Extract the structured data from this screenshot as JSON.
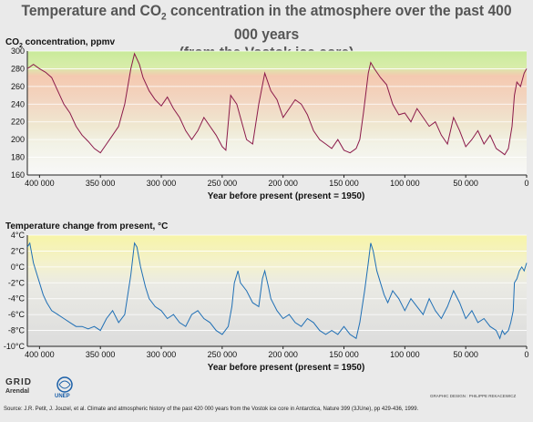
{
  "title_line1_pre": "Temperature and CO",
  "title_sub": "2",
  "title_line1_post": " concentration in the atmosphere over the past 400 000 years",
  "title_line2": "(from the Vostok ice core)",
  "chart_data": [
    {
      "type": "line",
      "ylabel_pre": "CO",
      "ylabel_sub": "2",
      "ylabel_post": " concentration, ppmv",
      "xlabel": "Year before present (present = 1950)",
      "xlim": [
        410000,
        0
      ],
      "ylim": [
        160,
        300
      ],
      "yticks": [
        "300",
        "280",
        "260",
        "240",
        "220",
        "200",
        "180",
        "160"
      ],
      "ytick_values": [
        300,
        280,
        260,
        240,
        220,
        200,
        180,
        160
      ],
      "xticks": [
        "400 000",
        "350 000",
        "300 000",
        "250 000",
        "200 000",
        "150 000",
        "100 000",
        "50 000",
        "0"
      ],
      "xtick_values": [
        400000,
        350000,
        300000,
        250000,
        200000,
        150000,
        100000,
        50000,
        0
      ],
      "line_color": "#8b1a4a",
      "x": [
        410000,
        405000,
        400000,
        395000,
        390000,
        385000,
        380000,
        375000,
        370000,
        365000,
        360000,
        355000,
        350000,
        345000,
        340000,
        335000,
        330000,
        325000,
        322000,
        318000,
        315000,
        310000,
        305000,
        300000,
        295000,
        290000,
        285000,
        280000,
        275000,
        270000,
        265000,
        260000,
        255000,
        250000,
        247000,
        243000,
        238000,
        235000,
        230000,
        225000,
        220000,
        215000,
        210000,
        205000,
        200000,
        195000,
        190000,
        185000,
        180000,
        175000,
        170000,
        165000,
        160000,
        155000,
        150000,
        145000,
        140000,
        137000,
        134000,
        130000,
        128000,
        125000,
        120000,
        115000,
        110000,
        105000,
        100000,
        95000,
        90000,
        85000,
        80000,
        75000,
        70000,
        65000,
        60000,
        55000,
        50000,
        45000,
        40000,
        35000,
        30000,
        25000,
        20000,
        18000,
        15000,
        12000,
        10000,
        8000,
        5000,
        2000,
        0
      ],
      "y": [
        280,
        285,
        280,
        276,
        270,
        255,
        240,
        230,
        215,
        205,
        198,
        190,
        185,
        195,
        205,
        215,
        240,
        280,
        297,
        285,
        270,
        255,
        245,
        238,
        248,
        235,
        225,
        210,
        200,
        210,
        225,
        215,
        205,
        192,
        188,
        250,
        240,
        225,
        200,
        195,
        240,
        275,
        255,
        245,
        225,
        235,
        245,
        240,
        228,
        210,
        200,
        195,
        190,
        200,
        188,
        185,
        190,
        200,
        230,
        275,
        287,
        280,
        270,
        262,
        240,
        228,
        230,
        220,
        235,
        225,
        215,
        220,
        205,
        195,
        225,
        210,
        192,
        200,
        210,
        195,
        205,
        190,
        185,
        183,
        190,
        215,
        250,
        265,
        260,
        275,
        280
      ]
    },
    {
      "type": "line",
      "ylabel": "Temperature change from present, °C",
      "xlabel": "Year before present (present = 1950)",
      "xlim": [
        410000,
        0
      ],
      "ylim": [
        -10,
        4
      ],
      "yticks": [
        "4°C",
        "2°C",
        "0°C",
        "-2°C",
        "-4°C",
        "-6°C",
        "-8°C",
        "-10°C"
      ],
      "ytick_values": [
        4,
        2,
        0,
        -2,
        -4,
        -6,
        -8,
        -10
      ],
      "xticks": [
        "400 000",
        "350 000",
        "300 000",
        "250 000",
        "200 000",
        "150 000",
        "100 000",
        "50 000",
        "0"
      ],
      "xtick_values": [
        400000,
        350000,
        300000,
        250000,
        200000,
        150000,
        100000,
        50000,
        0
      ],
      "line_color": "#1f6fb5",
      "x": [
        410000,
        408000,
        405000,
        402000,
        400000,
        397000,
        394000,
        390000,
        385000,
        380000,
        375000,
        370000,
        365000,
        360000,
        355000,
        350000,
        345000,
        340000,
        335000,
        330000,
        328000,
        325000,
        322000,
        320000,
        317000,
        313000,
        310000,
        305000,
        300000,
        295000,
        290000,
        285000,
        280000,
        275000,
        270000,
        265000,
        260000,
        255000,
        250000,
        245000,
        242000,
        240000,
        237000,
        235000,
        230000,
        225000,
        220000,
        217000,
        215000,
        212000,
        210000,
        205000,
        200000,
        195000,
        190000,
        185000,
        180000,
        175000,
        170000,
        165000,
        160000,
        155000,
        150000,
        145000,
        140000,
        137000,
        133000,
        130000,
        128000,
        126000,
        123000,
        120000,
        117000,
        114000,
        110000,
        105000,
        100000,
        95000,
        90000,
        85000,
        80000,
        75000,
        70000,
        65000,
        60000,
        55000,
        50000,
        45000,
        40000,
        35000,
        30000,
        25000,
        22000,
        20000,
        18000,
        15000,
        13000,
        11000,
        10000,
        8000,
        6000,
        4000,
        2000,
        0
      ],
      "y": [
        2.5,
        3.0,
        0.5,
        -1.0,
        -2.0,
        -3.5,
        -4.5,
        -5.5,
        -6.0,
        -6.5,
        -7.0,
        -7.5,
        -7.5,
        -7.8,
        -7.5,
        -8.0,
        -6.5,
        -5.5,
        -7.0,
        -6.0,
        -4.0,
        -1.0,
        3.0,
        2.5,
        0.0,
        -2.5,
        -4.0,
        -5.0,
        -5.5,
        -6.5,
        -6.0,
        -7.0,
        -7.5,
        -6.0,
        -5.5,
        -6.5,
        -7.0,
        -8.0,
        -8.5,
        -7.5,
        -5.0,
        -2.0,
        -0.5,
        -2.0,
        -3.0,
        -4.5,
        -5.0,
        -1.5,
        -0.5,
        -2.5,
        -4.0,
        -5.5,
        -6.5,
        -6.0,
        -7.0,
        -7.5,
        -6.5,
        -7.0,
        -8.0,
        -8.5,
        -8.0,
        -8.5,
        -7.5,
        -8.5,
        -9.0,
        -7.0,
        -3.0,
        0.5,
        3.0,
        2.0,
        -0.5,
        -2.0,
        -3.5,
        -4.5,
        -3.0,
        -4.0,
        -5.5,
        -4.0,
        -5.0,
        -6.0,
        -4.0,
        -5.5,
        -6.5,
        -5.0,
        -3.0,
        -4.5,
        -6.5,
        -5.5,
        -7.0,
        -6.5,
        -7.5,
        -8.0,
        -9.0,
        -8.0,
        -8.5,
        -8.0,
        -7.0,
        -5.5,
        -2.0,
        -1.5,
        -0.5,
        0.0,
        -0.5,
        0.5
      ]
    }
  ],
  "source": "Source: J.R. Petit, J. Jouzel, et al. Climate and atmospheric history of the past 420 000 years from the Vostok ice core in Antarctica, Nature 399 (3JUne), pp 429-436, 1999.",
  "credit": "GRAPHIC DESIGN : PHILIPPE REKACEWICZ",
  "logo_grid": "GRID",
  "logo_arendal": "Arendal",
  "logo_unep": "UNEP"
}
